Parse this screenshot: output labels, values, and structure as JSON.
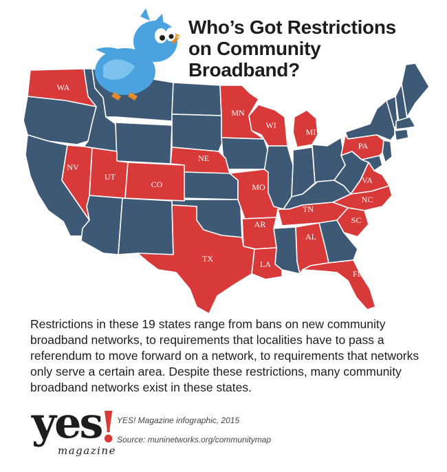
{
  "header": {
    "title_line1": "Who’s Got Restrictions",
    "title_line2": "on Community",
    "title_line3": "Broadband?"
  },
  "colors": {
    "restricted": "#d83a3a",
    "unrestricted": "#3d5975",
    "border": "#ffffff",
    "bird": "#4aa3df"
  },
  "icons": {
    "bird": "twitter-bird-icon"
  },
  "map": {
    "restricted_states": [
      {
        "abbr": "WA"
      },
      {
        "abbr": "NV"
      },
      {
        "abbr": "UT"
      },
      {
        "abbr": "CO"
      },
      {
        "abbr": "NE"
      },
      {
        "abbr": "MN"
      },
      {
        "abbr": "WI"
      },
      {
        "abbr": "MI"
      },
      {
        "abbr": "PA"
      },
      {
        "abbr": "VA"
      },
      {
        "abbr": "NC"
      },
      {
        "abbr": "SC"
      },
      {
        "abbr": "TN"
      },
      {
        "abbr": "MO"
      },
      {
        "abbr": "AR"
      },
      {
        "abbr": "AL"
      },
      {
        "abbr": "LA"
      },
      {
        "abbr": "TX"
      },
      {
        "abbr": "FL"
      }
    ]
  },
  "description": "Restrictions in these 19 states range from bans on new community broadband networks, to requirements that localities have to pass a referendum to move forward on a network, to requirements that networks only serve a certain area. Despite these restrictions, many community broadband networks exist in these states.",
  "footer": {
    "logo_word": "yes",
    "logo_bang": "!",
    "logo_sub": "magazine",
    "credit": "YES! Magazine infographic, 2015",
    "source": "Source: muninetworks.org/communitymap"
  }
}
